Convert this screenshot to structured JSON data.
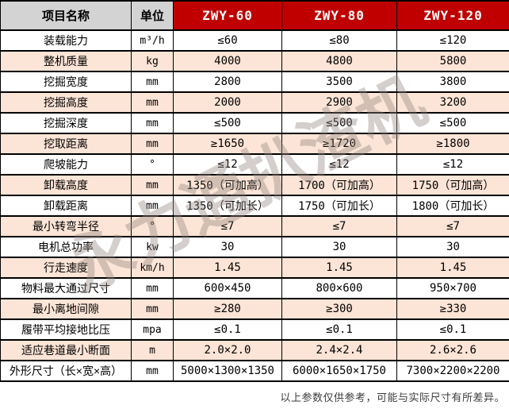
{
  "chart_data": {
    "type": "table",
    "columns": [
      "项目名称",
      "单位",
      "ZWY-60",
      "ZWY-80",
      "ZWY-120"
    ],
    "rows": [
      [
        "装载能力",
        "m³/h",
        "≤60",
        "≤80",
        "≤120"
      ],
      [
        "整机质量",
        "kg",
        "4000",
        "4800",
        "5800"
      ],
      [
        "挖掘宽度",
        "mm",
        "2800",
        "3500",
        "3800"
      ],
      [
        "挖掘高度",
        "mm",
        "2000",
        "2900",
        "3200"
      ],
      [
        "挖掘深度",
        "mm",
        "≤500",
        "≤500",
        "≤500"
      ],
      [
        "挖取距离",
        "mm",
        "≥1650",
        "≥1720",
        "≥1800"
      ],
      [
        "爬坡能力",
        "°",
        "≤12",
        "≤12",
        "≤12"
      ],
      [
        "卸载高度",
        "mm",
        "1350（可加高）",
        "1700（可加高）",
        "1750（可加高）"
      ],
      [
        "卸载距离",
        "mm",
        "1350（可加长）",
        "1750（可加长）",
        "1800（可加长）"
      ],
      [
        "最小转弯半径",
        "°",
        "≤7",
        "≤7",
        "≤7"
      ],
      [
        "电机总功率",
        "kw",
        "30",
        "30",
        "30"
      ],
      [
        "行走速度",
        "km/h",
        "1.45",
        "1.45",
        "1.45"
      ],
      [
        "物料最大通过尺寸",
        "mm",
        "600×450",
        "800×600",
        "950×700"
      ],
      [
        "最小离地间隙",
        "mm",
        "≥280",
        "≥300",
        "≥330"
      ],
      [
        "履带平均接地比压",
        "mpa",
        "≤0.1",
        "≤0.1",
        "≤0.1"
      ],
      [
        "适应巷道最小断面",
        "m",
        "2.0×2.0",
        "2.4×2.4",
        "2.6×2.6"
      ],
      [
        "外形尺寸（长×宽×高）",
        "mm",
        "5000×1300×1350",
        "6000×1650×1750",
        "7300×2200×2200"
      ]
    ]
  },
  "watermark": "永力通扒渣机",
  "footer_note": "以上参数仅供参考，可能与实际尺寸有所差异。",
  "colors": {
    "header_red": "#c00000",
    "header_gray": "#d3d3d3",
    "row_pink": "#fce4d6",
    "row_white": "#ffffff",
    "border": "#000000"
  }
}
